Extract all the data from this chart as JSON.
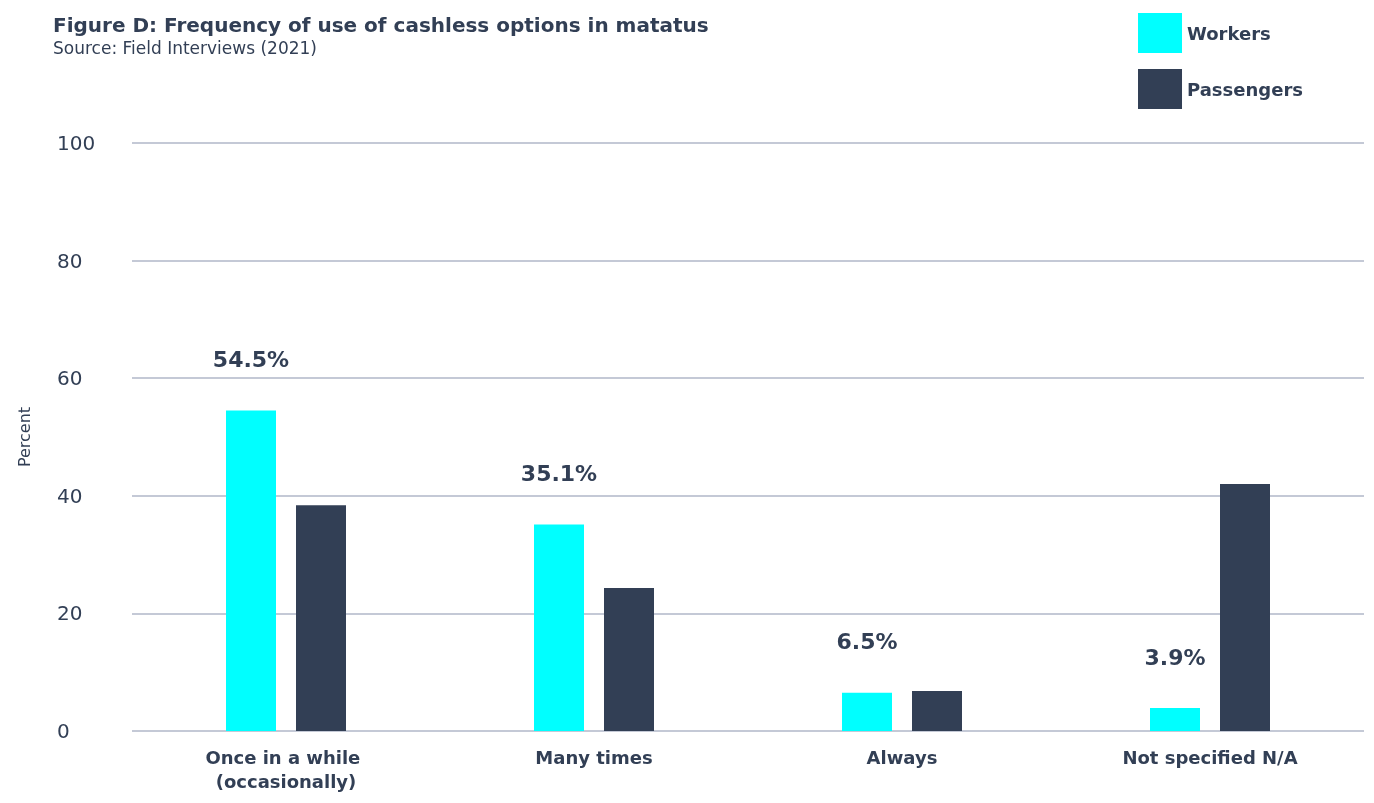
{
  "chart_data": {
    "type": "bar",
    "title": "Figure D: Frequency of use of cashless options in matatus",
    "subtitle": "Source: Field Interviews (2021)",
    "ylabel": "Percent",
    "categories": [
      "Once in a while (occasionally)",
      "Many times",
      "Always",
      "Not specified N/A"
    ],
    "series": [
      {
        "name": "Workers",
        "color": "#00ffff",
        "values": [
          54.5,
          35.1,
          6.5,
          3.9
        ],
        "value_labels": [
          "54.5%",
          "35.1%",
          "6.5%",
          "3.9%"
        ]
      },
      {
        "name": "Passengers",
        "color": "#323f55",
        "values": [
          38.4,
          24.3,
          6.8,
          42.0
        ]
      }
    ],
    "ylim": [
      0,
      100
    ],
    "yticks": [
      0,
      20,
      40,
      60,
      80,
      100
    ],
    "grid": "y",
    "legend": "top right"
  }
}
